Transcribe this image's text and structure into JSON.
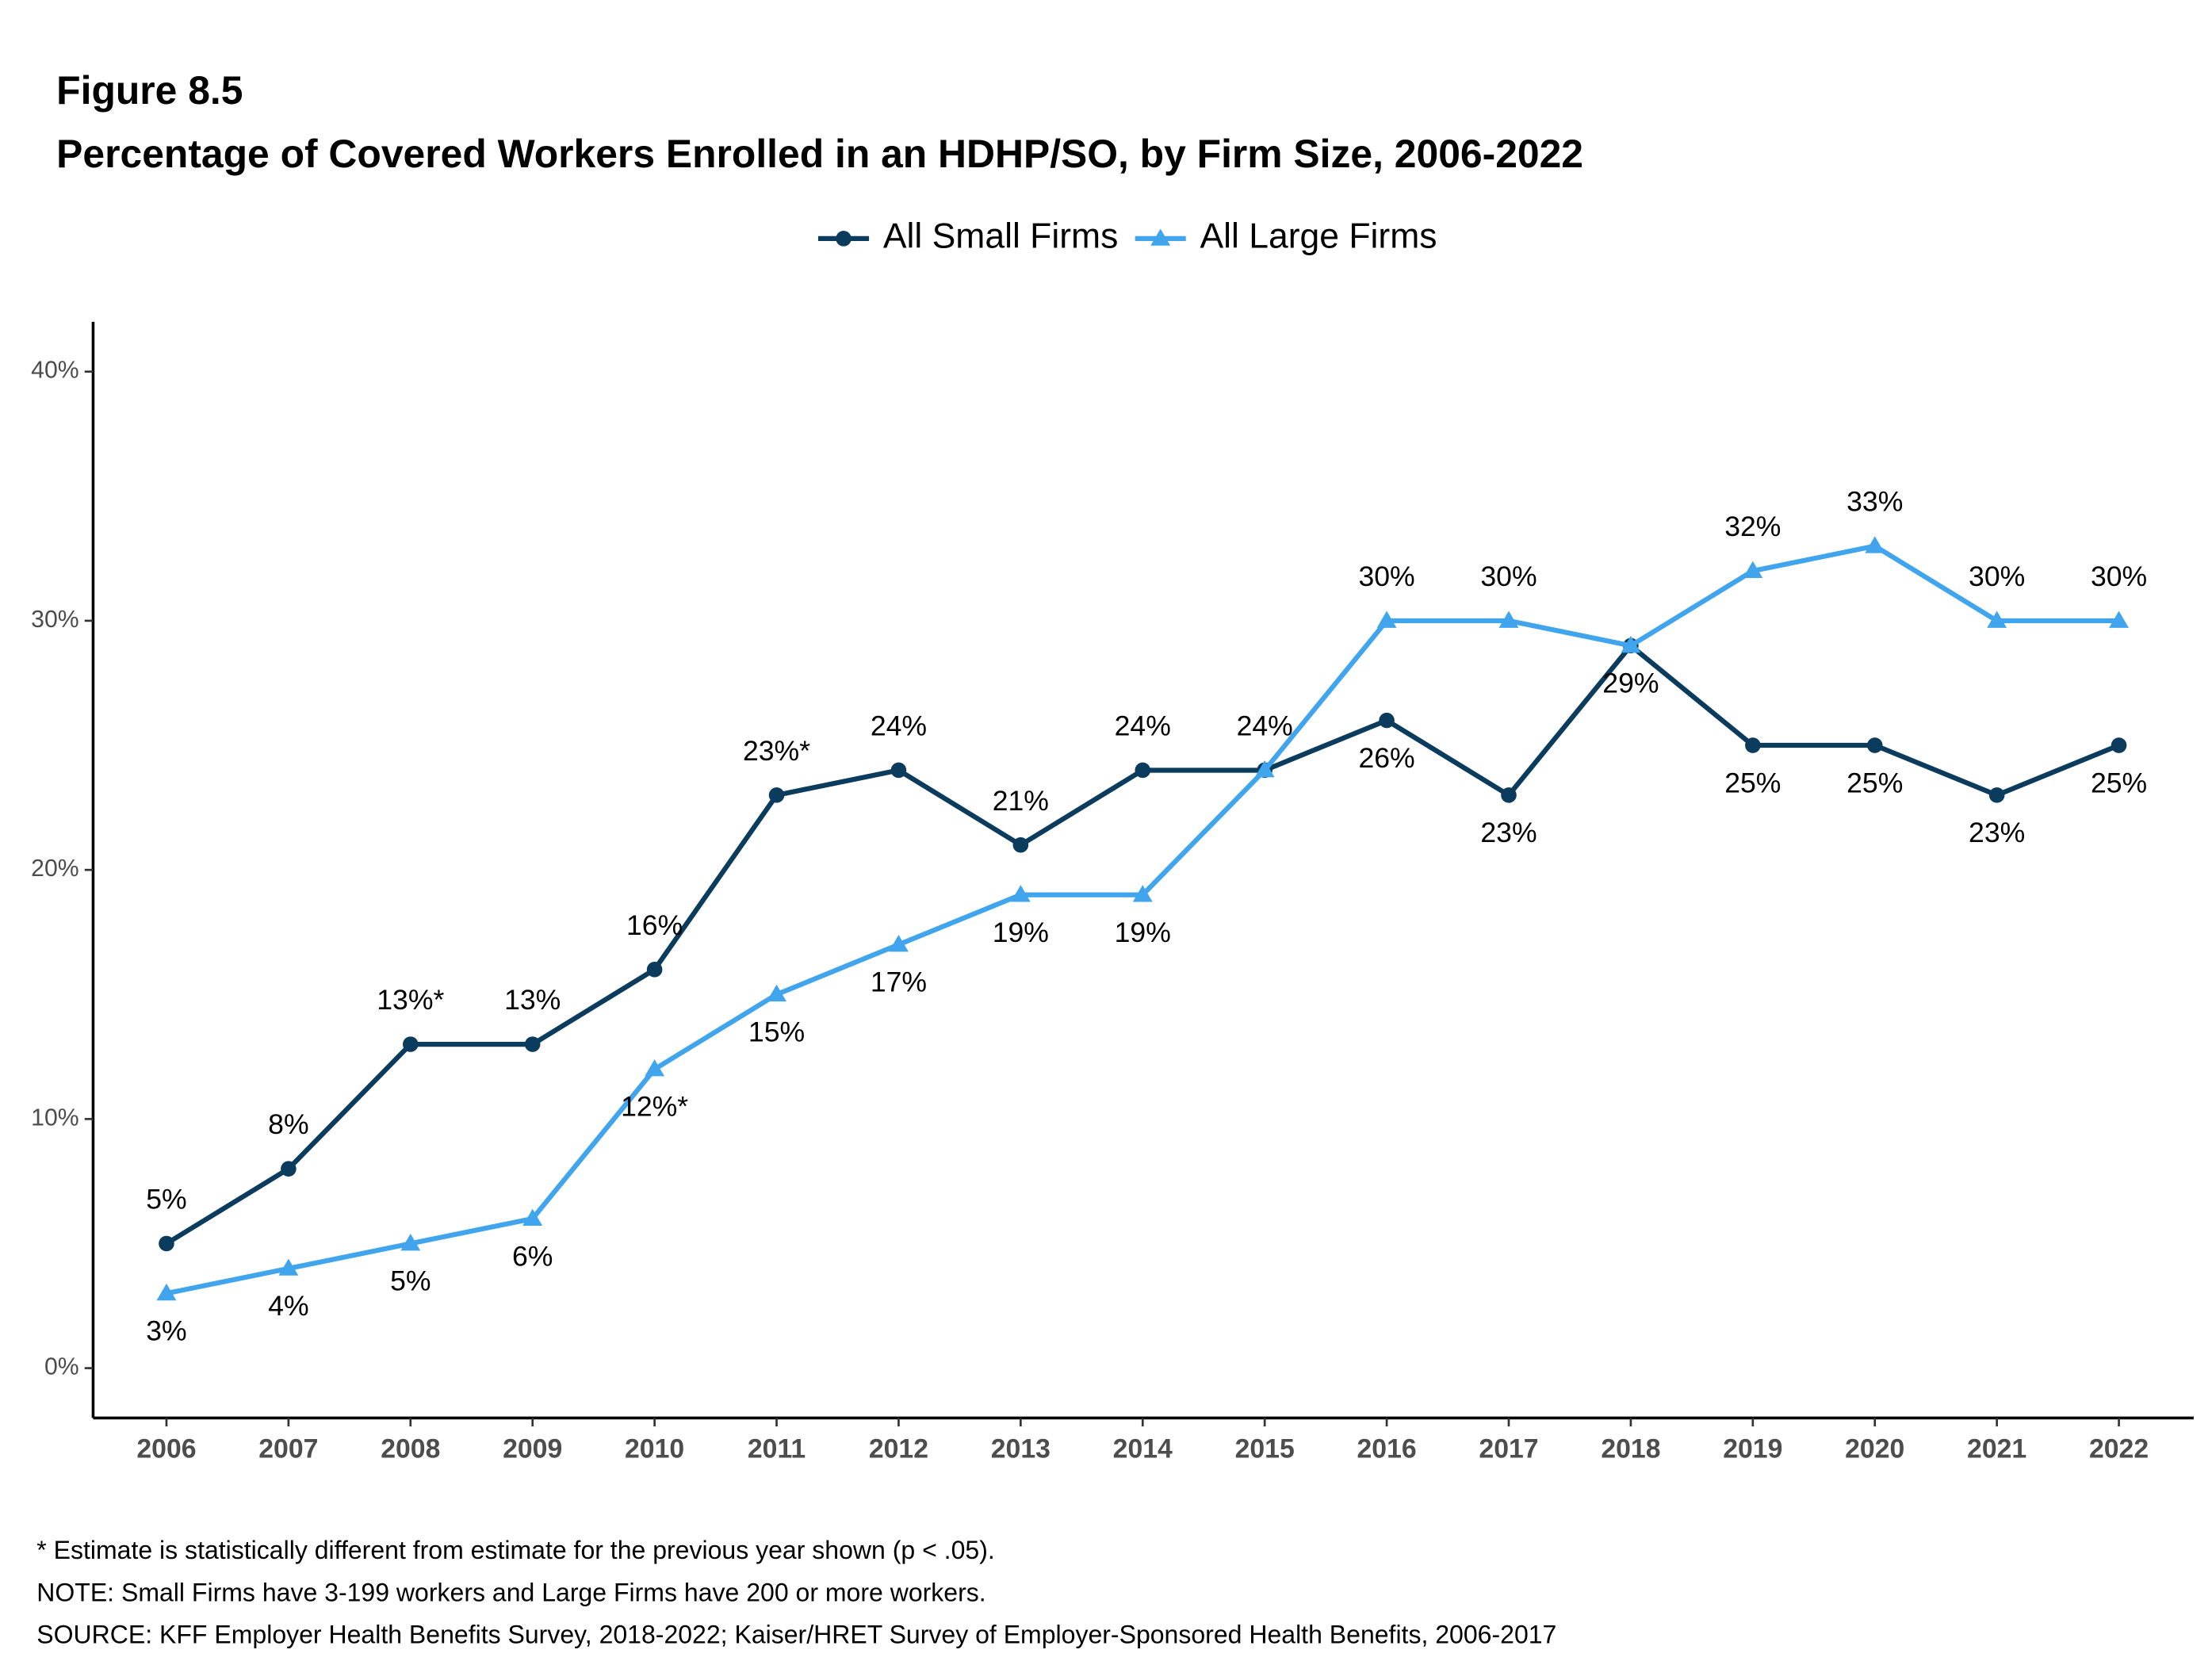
{
  "chart_data": {
    "type": "line",
    "label": "Figure 8.5",
    "title": "Percentage of Covered Workers Enrolled in an HDHP/SO, by Firm Size, 2006-2022",
    "categories": [
      "2006",
      "2007",
      "2008",
      "2009",
      "2010",
      "2011",
      "2012",
      "2013",
      "2014",
      "2015",
      "2016",
      "2017",
      "2018",
      "2019",
      "2020",
      "2021",
      "2022"
    ],
    "series": [
      {
        "name": "All Small Firms",
        "color": "#0b3c5d",
        "marker": "circle",
        "values": [
          5,
          8,
          13,
          13,
          16,
          23,
          24,
          21,
          24,
          24,
          26,
          23,
          29,
          25,
          25,
          23,
          25
        ],
        "value_labels": [
          "5%",
          "8%",
          "13%*",
          "13%",
          "16%",
          "23%*",
          "24%",
          "21%",
          "24%",
          "24%",
          "26%",
          "23%",
          "29%",
          "25%",
          "25%",
          "23%",
          "25%"
        ]
      },
      {
        "name": "All Large Firms",
        "color": "#41a5ee",
        "marker": "triangle",
        "values": [
          3,
          4,
          5,
          6,
          12,
          15,
          17,
          19,
          19,
          24,
          30,
          30,
          29,
          32,
          33,
          30,
          30
        ],
        "value_labels": [
          "3%",
          "4%",
          "5%",
          "6%",
          "12%*",
          "15%",
          "17%",
          "19%",
          "19%",
          null,
          "30%",
          "30%",
          null,
          "32%",
          "33%",
          "30%",
          "30%"
        ]
      }
    ],
    "ylim": [
      -2,
      42
    ],
    "yticks": [
      {
        "value": 0,
        "label": "0%"
      },
      {
        "value": 10,
        "label": "10%"
      },
      {
        "value": 20,
        "label": "20%"
      },
      {
        "value": 30,
        "label": "30%"
      },
      {
        "value": 40,
        "label": "40%"
      }
    ],
    "grid": false,
    "legend": "top",
    "notes": [
      "* Estimate is statistically different from estimate for the previous year shown (p < .05).",
      "NOTE: Small Firms have 3-199 workers and Large Firms have 200 or more workers.",
      "SOURCE: KFF Employer Health Benefits Survey, 2018-2022; Kaiser/HRET Survey of Employer-Sponsored Health Benefits, 2006-2017"
    ]
  }
}
